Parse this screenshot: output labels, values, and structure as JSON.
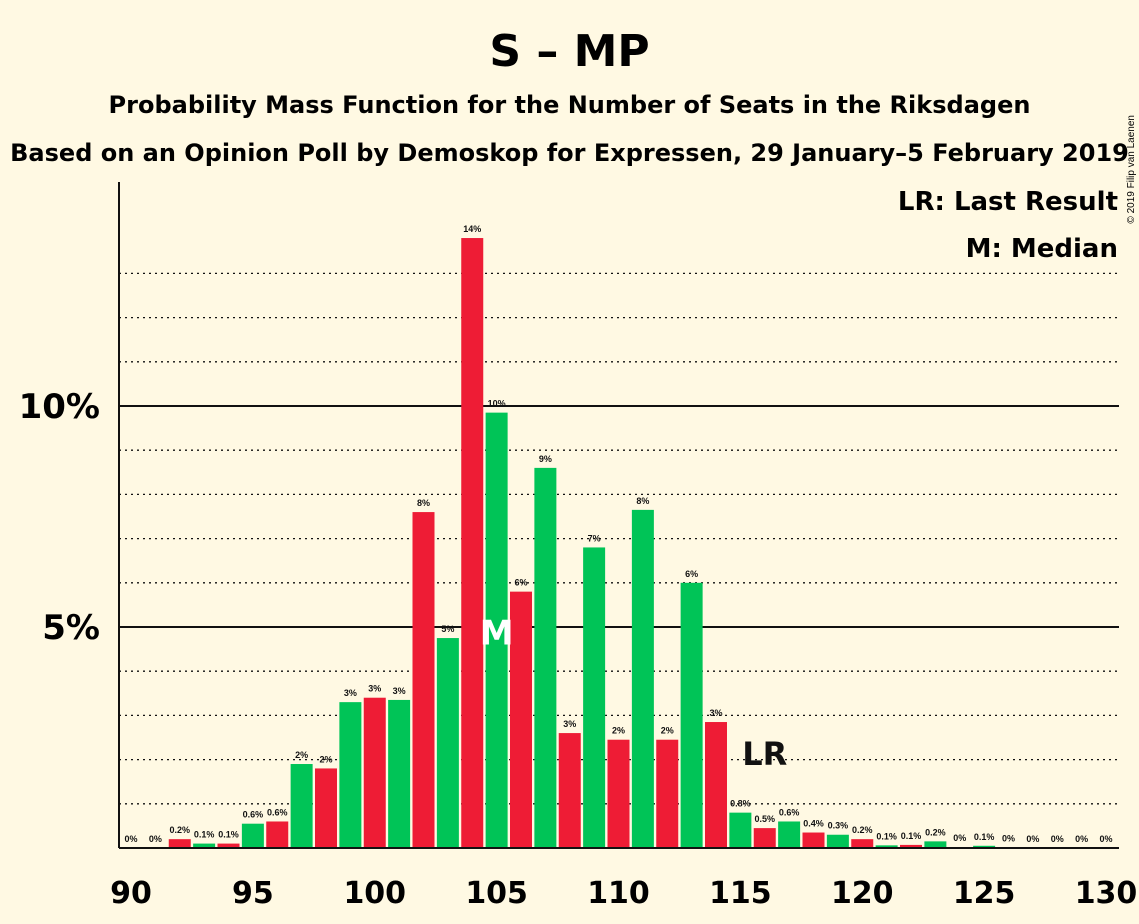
{
  "title": "S – MP",
  "subtitle1": "Probability Mass Function for the Number of Seats in the Riksdagen",
  "subtitle2": "Based on an Opinion Poll by Demoskop for Expressen, 29 January–5 February 2019",
  "copyright": "© 2019 Filip van Laenen",
  "legend": {
    "last_result": "LR: Last Result",
    "median": "M: Median"
  },
  "colors": {
    "red": "#ee1c35",
    "green": "#00c457",
    "background": "#fff9e3",
    "text": "#111111"
  },
  "chart_data": {
    "type": "bar",
    "xlabel": "",
    "ylabel": "",
    "x_ticks": [
      90,
      95,
      100,
      105,
      110,
      115,
      120,
      125,
      130
    ],
    "y_ticks": [
      {
        "value": 5,
        "label": "5%"
      },
      {
        "value": 10,
        "label": "10%"
      }
    ],
    "ylim": [
      0,
      15
    ],
    "grid": "dotted lines every 1%, solid at 5% and 10%",
    "median_seat": 105,
    "median_marker": "M",
    "last_result_seat": 116,
    "last_result_marker": "LR",
    "seats": [
      90,
      91,
      92,
      93,
      94,
      95,
      96,
      97,
      98,
      99,
      100,
      101,
      102,
      103,
      104,
      105,
      106,
      107,
      108,
      109,
      110,
      111,
      112,
      113,
      114,
      115,
      116,
      117,
      118,
      119,
      120,
      121,
      122,
      123,
      124,
      125,
      126,
      127,
      128,
      129,
      130
    ],
    "values": [
      0,
      0,
      0.2,
      0.1,
      0.1,
      0.55,
      0.6,
      1.9,
      1.8,
      3.3,
      3.4,
      3.35,
      7.6,
      4.75,
      13.8,
      9.85,
      5.8,
      8.6,
      2.6,
      6.8,
      2.45,
      7.65,
      2.45,
      6.0,
      2.85,
      0.8,
      0.45,
      0.6,
      0.35,
      0.3,
      0.2,
      0.06,
      0.07,
      0.15,
      0.02,
      0.05,
      0.01,
      0,
      0,
      0,
      0
    ],
    "labels": [
      "0%",
      "0%",
      "0.2%",
      "0.1%",
      "0.1%",
      "0.6%",
      "0.6%",
      "2%",
      "2%",
      "3%",
      "3%",
      "3%",
      "8%",
      "5%",
      "14%",
      "10%",
      "6%",
      "9%",
      "3%",
      "7%",
      "2%",
      "8%",
      "2%",
      "6%",
      "3%",
      "0.8%",
      "0.5%",
      "0.6%",
      "0.4%",
      "0.3%",
      "0.2%",
      "0.1%",
      "0.1%",
      "0.2%",
      "0%",
      "0.1%",
      "0%",
      "0%",
      "0%",
      "0%",
      "0%"
    ],
    "bar_colors_pattern": "even seats red, odd seats green"
  }
}
